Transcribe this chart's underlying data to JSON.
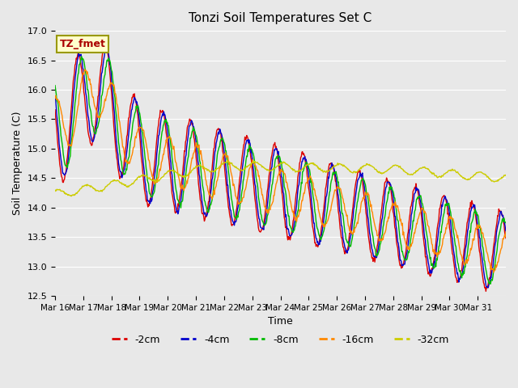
{
  "title": "Tonzi Soil Temperatures Set C",
  "xlabel": "Time",
  "ylabel": "Soil Temperature (C)",
  "ylim": [
    12.5,
    17.0
  ],
  "yticks": [
    12.5,
    13.0,
    13.5,
    14.0,
    14.5,
    15.0,
    15.5,
    16.0,
    16.5,
    17.0
  ],
  "x_tick_labels": [
    "Mar 16",
    "Mar 17",
    "Mar 18",
    "Mar 19",
    "Mar 20",
    "Mar 21",
    "Mar 22",
    "Mar 23",
    "Mar 24",
    "Mar 25",
    "Mar 26",
    "Mar 27",
    "Mar 28",
    "Mar 29",
    "Mar 30",
    "Mar 31"
  ],
  "series_colors": [
    "#dd0000",
    "#0000cc",
    "#00bb00",
    "#ff8800",
    "#cccc00"
  ],
  "series_labels": [
    "-2cm",
    "-4cm",
    "-8cm",
    "-16cm",
    "-32cm"
  ],
  "annotation_text": "TZ_fmet",
  "annotation_bbox_facecolor": "#ffffcc",
  "annotation_bbox_edgecolor": "#999900",
  "annotation_textcolor": "#aa0000",
  "bg_color": "#e8e8e8"
}
